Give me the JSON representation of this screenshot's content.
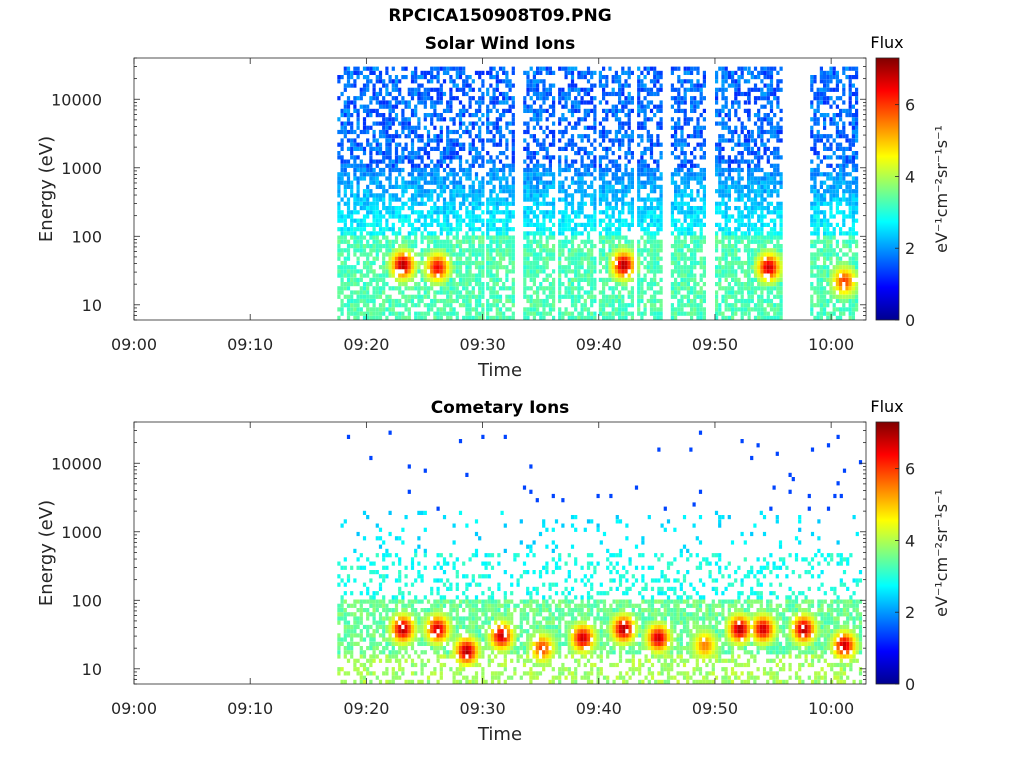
{
  "figure": {
    "title": "RPCICA150908T09.PNG"
  },
  "chart_data": [
    {
      "type": "heatmap",
      "title": "Solar Wind Ions",
      "xlabel": "Time",
      "ylabel": "Energy (eV)",
      "x_ticks": [
        "09:00",
        "09:10",
        "09:20",
        "09:30",
        "09:40",
        "09:50",
        "10:00"
      ],
      "xlim": [
        "09:00",
        "10:03"
      ],
      "y_scale": "log",
      "y_ticks": [
        10,
        100,
        1000,
        10000
      ],
      "ylim": [
        6,
        40000
      ],
      "colorbar": {
        "label_top": "Flux",
        "unit": "eV⁻¹cm⁻²sr⁻¹s⁻¹",
        "ticks": [
          0,
          2,
          4,
          6
        ],
        "range": [
          0,
          7.3
        ],
        "colormap": "jet"
      },
      "coverage": [
        [
          "09:17.5",
          "09:30.0"
        ],
        [
          "09:30.3",
          "09:32.8"
        ],
        [
          "09:33.5",
          "09:36.2"
        ],
        [
          "09:36.5",
          "09:39.8"
        ],
        [
          "09:40.0",
          "09:43.0"
        ],
        [
          "09:43.3",
          "09:45.3"
        ],
        [
          "09:46.2",
          "09:49.2"
        ],
        [
          "09:50.0",
          "09:52.8"
        ],
        [
          "09:52.8",
          "09:55.8"
        ],
        [
          "09:58.2",
          "10:02.2"
        ]
      ],
      "hotspots": [
        {
          "time": "09:23",
          "energy_eV": 38,
          "flux": 7.0
        },
        {
          "time": "09:26",
          "energy_eV": 35,
          "flux": 6.5
        },
        {
          "time": "09:42",
          "energy_eV": 38,
          "flux": 7.0
        },
        {
          "time": "09:54.5",
          "energy_eV": 35,
          "flux": 6.8
        },
        {
          "time": "10:01",
          "energy_eV": 22,
          "flux": 6.0
        }
      ],
      "background": {
        "high_energy_flux": 1.5,
        "low_energy_flux": 3.2
      }
    },
    {
      "type": "heatmap",
      "title": "Cometary Ions",
      "xlabel": "Time",
      "ylabel": "Energy (eV)",
      "x_ticks": [
        "09:00",
        "09:10",
        "09:20",
        "09:30",
        "09:40",
        "09:50",
        "10:00"
      ],
      "xlim": [
        "09:00",
        "10:03"
      ],
      "y_scale": "log",
      "y_ticks": [
        10,
        100,
        1000,
        10000
      ],
      "ylim": [
        6,
        40000
      ],
      "colorbar": {
        "label_top": "Flux",
        "unit": "eV⁻¹cm⁻²sr⁻¹s⁻¹",
        "ticks": [
          0,
          2,
          4,
          6
        ],
        "range": [
          0,
          7.3
        ],
        "colormap": "jet"
      },
      "coverage": [
        [
          "09:17.5",
          "10:02.5"
        ]
      ],
      "hotspots": [
        {
          "time": "09:23",
          "energy_eV": 38,
          "flux": 7.0
        },
        {
          "time": "09:26",
          "energy_eV": 38,
          "flux": 6.8
        },
        {
          "time": "09:28.5",
          "energy_eV": 18,
          "flux": 7.0
        },
        {
          "time": "09:31.5",
          "energy_eV": 30,
          "flux": 6.8
        },
        {
          "time": "09:35",
          "energy_eV": 20,
          "flux": 6.0
        },
        {
          "time": "09:38.5",
          "energy_eV": 28,
          "flux": 6.8
        },
        {
          "time": "09:42",
          "energy_eV": 38,
          "flux": 7.0
        },
        {
          "time": "09:45",
          "energy_eV": 28,
          "flux": 6.8
        },
        {
          "time": "09:49",
          "energy_eV": 22,
          "flux": 5.5
        },
        {
          "time": "09:52",
          "energy_eV": 38,
          "flux": 7.0
        },
        {
          "time": "09:54",
          "energy_eV": 38,
          "flux": 6.8
        },
        {
          "time": "09:57.5",
          "energy_eV": 38,
          "flux": 7.0
        },
        {
          "time": "10:01",
          "energy_eV": 22,
          "flux": 6.8
        }
      ],
      "background": {
        "high_energy_flux": 2.8,
        "low_energy_flux": 3.8
      }
    }
  ]
}
